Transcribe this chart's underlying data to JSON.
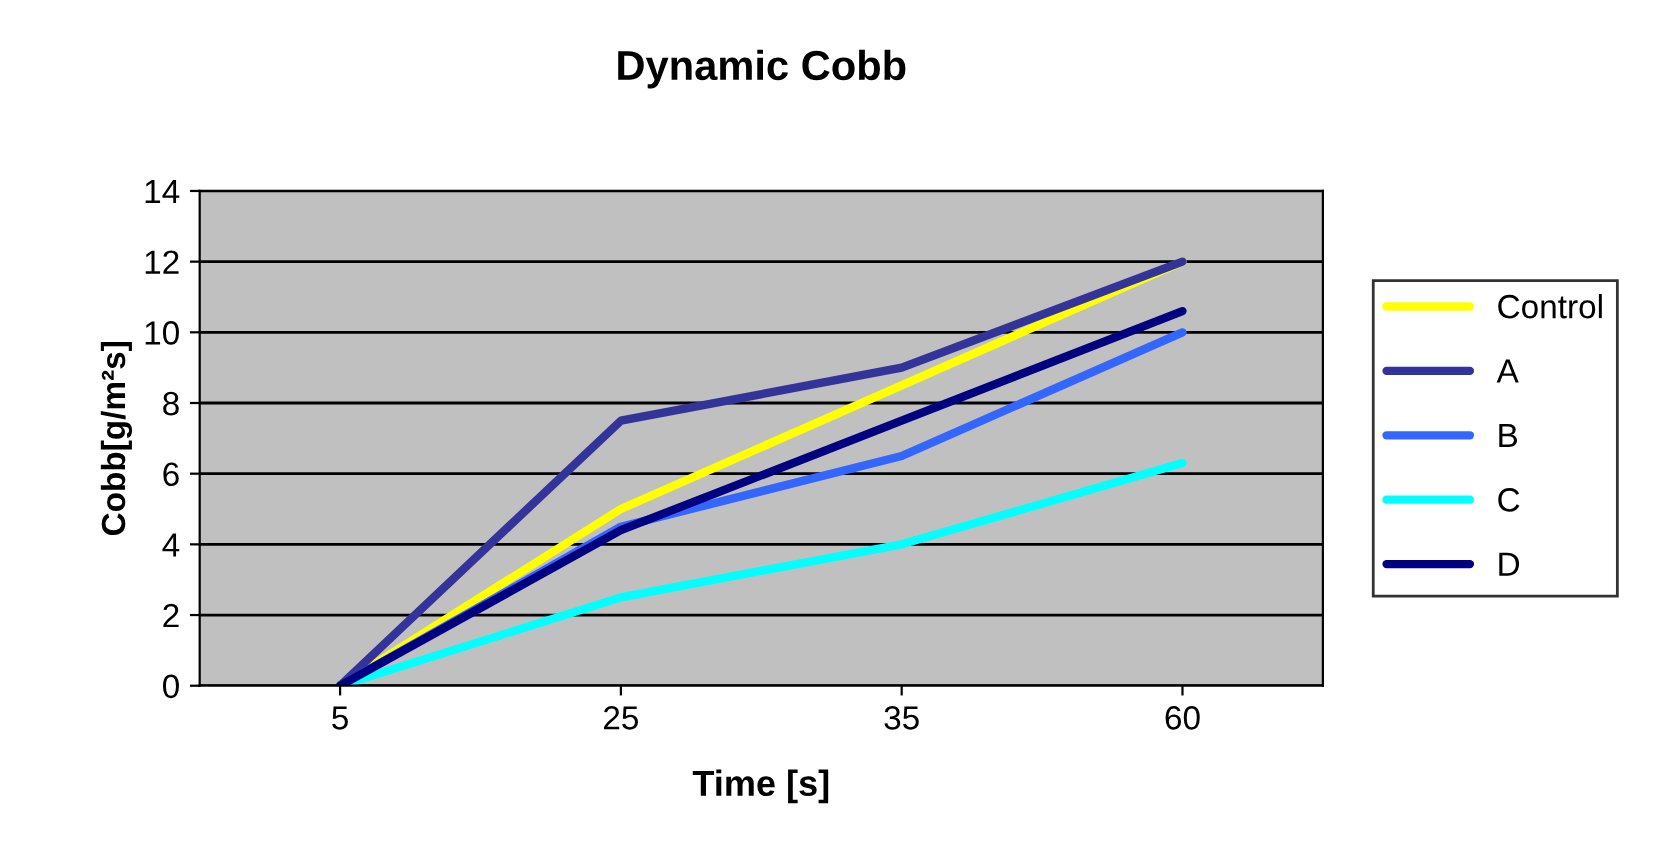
{
  "chart_data": {
    "type": "line",
    "title": "Dynamic Cobb",
    "xlabel": "Time [s]",
    "ylabel": "Cobb[g/m²s]",
    "categories": [
      "5",
      "25",
      "35",
      "60"
    ],
    "series": [
      {
        "name": "Control",
        "color": "#ffff00",
        "values": [
          0,
          5.0,
          8.5,
          12
        ]
      },
      {
        "name": "A",
        "color": "#333399",
        "values": [
          0,
          7.5,
          9,
          12
        ]
      },
      {
        "name": "B",
        "color": "#3366ff",
        "values": [
          0,
          4.5,
          6.5,
          10
        ]
      },
      {
        "name": "C",
        "color": "#00ffff",
        "values": [
          0,
          2.5,
          4,
          6.3
        ]
      },
      {
        "name": "D",
        "color": "#000080",
        "values": [
          0,
          4.4,
          7.5,
          10.6
        ]
      }
    ],
    "ylim": [
      0,
      14
    ],
    "yticks": [
      0,
      2,
      4,
      6,
      8,
      10,
      12,
      14
    ],
    "grid": "y",
    "legend": "right",
    "marker": "none",
    "line_style": "solid"
  }
}
